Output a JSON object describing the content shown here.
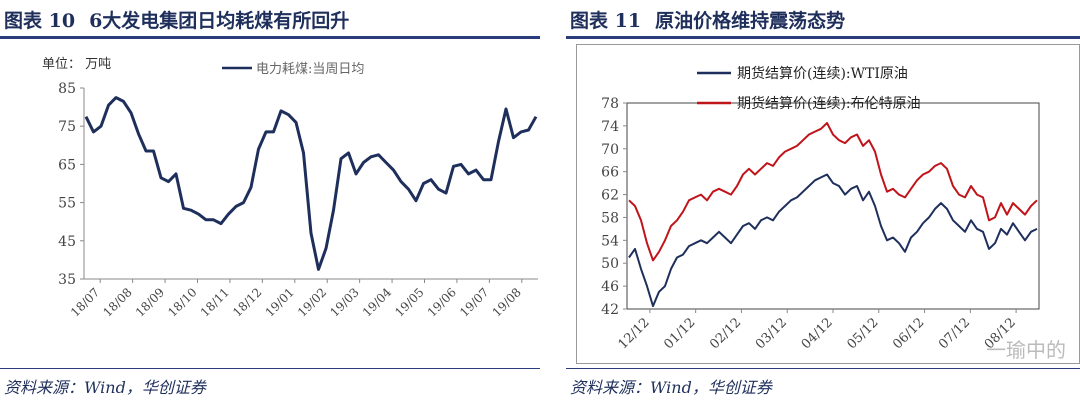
{
  "left": {
    "fig_label": "图表 10",
    "title": "6大发电集团日均耗煤有所回升",
    "source": "资料来源：Wind，华创证券",
    "unit_label": "单位：  万吨"
  },
  "right": {
    "fig_label": "图表 11",
    "title": "原油价格维持震荡态势",
    "source": "资料来源：Wind，华创证券",
    "watermark": "一瑜中的"
  },
  "chart_data": [
    {
      "type": "line",
      "title": "",
      "ylabel": "单位：万吨",
      "ylim": [
        35,
        85
      ],
      "yticks": [
        "35",
        "45",
        "55",
        "65",
        "75",
        "85"
      ],
      "xtick_labels": [
        "18/07",
        "18/08",
        "18/09",
        "18/10",
        "18/11",
        "18/12",
        "19/01",
        "19/02",
        "19/03",
        "19/04",
        "19/05",
        "19/06",
        "19/07",
        "19/08"
      ],
      "legend": "top",
      "grid": false,
      "series": [
        {
          "name": "电力耗煤:当周日均",
          "color": "#1f2f5c",
          "values": [
            77.5,
            73.5,
            75,
            80.5,
            82.5,
            81.5,
            78.5,
            73,
            68.5,
            68.5,
            61.5,
            60.5,
            62.5,
            53.5,
            53,
            52,
            50.5,
            50.5,
            49.5,
            52,
            54,
            55,
            59,
            69,
            73.5,
            73.5,
            79,
            78,
            76,
            68,
            47,
            37.5,
            43,
            53,
            66.5,
            68,
            62.5,
            65.5,
            67,
            67.5,
            65.5,
            63.5,
            60.5,
            58.5,
            55.5,
            60,
            61,
            58.5,
            57.5,
            64.5,
            65,
            62.5,
            63.5,
            61,
            61,
            71,
            79.5,
            72,
            73.5,
            74,
            77.5
          ]
        }
      ]
    },
    {
      "type": "line",
      "title": "",
      "ylim": [
        42,
        78
      ],
      "yticks": [
        "42",
        "46",
        "50",
        "54",
        "58",
        "62",
        "66",
        "70",
        "74",
        "78"
      ],
      "xtick_labels": [
        "12/12",
        "01/12",
        "02/12",
        "03/12",
        "04/12",
        "05/12",
        "06/12",
        "07/12",
        "08/12"
      ],
      "legend": "top-left",
      "grid": false,
      "series": [
        {
          "name": "期货结算价(连续):WTI原油",
          "color": "#1f2f5c",
          "values": [
            51,
            52.5,
            49,
            46,
            42.5,
            45,
            46,
            49,
            51,
            51.5,
            53,
            53.5,
            54,
            53.5,
            54.5,
            55.5,
            54.5,
            53.5,
            55,
            56.5,
            57,
            56,
            57.5,
            58,
            57.5,
            59,
            60,
            61,
            61.5,
            62.5,
            63.5,
            64.5,
            65,
            65.5,
            64,
            63.5,
            62,
            63,
            63.5,
            61,
            62.5,
            60,
            56.5,
            54,
            54.5,
            53.5,
            52,
            54.5,
            55.5,
            57,
            58,
            59.5,
            60.5,
            59.5,
            57.5,
            56.5,
            55.5,
            57.5,
            56,
            55.5,
            52.5,
            53.5,
            56,
            55,
            57,
            55.5,
            54,
            55.5,
            56
          ]
        },
        {
          "name": "期货结算价(连续):布伦特原油",
          "color": "#c0141b",
          "values": [
            61,
            60,
            57.5,
            53.5,
            50.5,
            52,
            54,
            56.5,
            57.5,
            59,
            61,
            61.5,
            62,
            61,
            62.5,
            63,
            62.5,
            62,
            63.5,
            65.5,
            66.5,
            65.5,
            66.5,
            67.5,
            67,
            68.5,
            69.5,
            70,
            70.5,
            71.5,
            72.5,
            73,
            73.5,
            74.5,
            72.5,
            71.5,
            71,
            72,
            72.5,
            70.5,
            71.5,
            69.5,
            65.5,
            62.5,
            63,
            62,
            61.5,
            63,
            64.5,
            65.5,
            66,
            67,
            67.5,
            66.5,
            63.5,
            62,
            61.5,
            63.5,
            62,
            61.5,
            57.5,
            58,
            60.5,
            58.5,
            60.5,
            59.5,
            58.5,
            60,
            61
          ]
        }
      ]
    }
  ]
}
